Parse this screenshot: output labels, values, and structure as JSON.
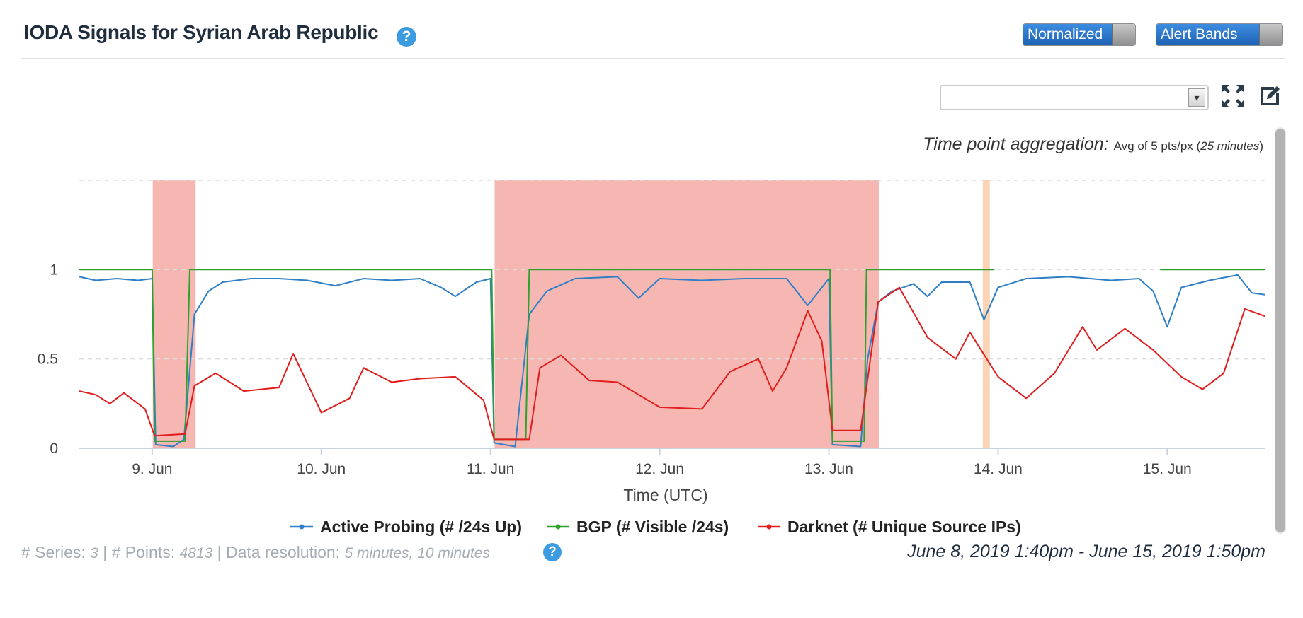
{
  "header": {
    "title": "IODA Signals for Syrian Arab Republic",
    "help_glyph": "?"
  },
  "toggles": {
    "normalized": "Normalized",
    "alert_bands": "Alert Bands"
  },
  "toolbar": {
    "select_value": "",
    "select_arrow_glyph": "▾"
  },
  "aggregation": {
    "label": "Time point aggregation:",
    "detail_prefix": "Avg of 5 pts/px (",
    "detail_italic": "25 minutes",
    "detail_suffix": ")"
  },
  "chart_data": {
    "type": "line",
    "xlabel": "Time (UTC)",
    "ylabel": "",
    "ylim": [
      0,
      1.5
    ],
    "x_range": [
      "2019-06-08 13:40",
      "2019-06-15 13:50"
    ],
    "yticks": [
      "0",
      "0.5",
      "1"
    ],
    "xticks": [
      "9. Jun",
      "10. Jun",
      "11. Jun",
      "12. Jun",
      "13. Jun",
      "14. Jun",
      "15. Jun"
    ],
    "grid": true,
    "legend_position": "bottom-center",
    "alert_bands": [
      {
        "start": "2019-06-09 00:05",
        "end": "2019-06-09 06:10",
        "level": "critical",
        "color": "#f4aaa6"
      },
      {
        "start": "2019-06-11 00:35",
        "end": "2019-06-13 07:05",
        "level": "critical",
        "color": "#f4aaa6"
      },
      {
        "start": "2019-06-13 21:50",
        "end": "2019-06-13 22:50",
        "level": "warning",
        "color": "#f9cda8"
      }
    ],
    "series": [
      {
        "name": "Active Probing (# /24s Up)",
        "color": "#2e7fc6",
        "points": [
          [
            "2019-06-08 13:40",
            0.96
          ],
          [
            "2019-06-08 16:00",
            0.94
          ],
          [
            "2019-06-08 19:00",
            0.95
          ],
          [
            "2019-06-08 22:00",
            0.94
          ],
          [
            "2019-06-09 00:00",
            0.95
          ],
          [
            "2019-06-09 00:30",
            0.02
          ],
          [
            "2019-06-09 03:00",
            0.01
          ],
          [
            "2019-06-09 04:30",
            0.05
          ],
          [
            "2019-06-09 06:00",
            0.75
          ],
          [
            "2019-06-09 08:00",
            0.88
          ],
          [
            "2019-06-09 10:00",
            0.93
          ],
          [
            "2019-06-09 14:00",
            0.95
          ],
          [
            "2019-06-09 18:00",
            0.95
          ],
          [
            "2019-06-09 22:00",
            0.94
          ],
          [
            "2019-06-10 02:00",
            0.91
          ],
          [
            "2019-06-10 06:00",
            0.95
          ],
          [
            "2019-06-10 10:00",
            0.94
          ],
          [
            "2019-06-10 14:00",
            0.95
          ],
          [
            "2019-06-10 17:00",
            0.9
          ],
          [
            "2019-06-10 19:00",
            0.85
          ],
          [
            "2019-06-10 22:00",
            0.93
          ],
          [
            "2019-06-11 00:00",
            0.95
          ],
          [
            "2019-06-11 00:30",
            0.03
          ],
          [
            "2019-06-11 03:30",
            0.01
          ],
          [
            "2019-06-11 05:30",
            0.75
          ],
          [
            "2019-06-11 08:00",
            0.88
          ],
          [
            "2019-06-11 12:00",
            0.95
          ],
          [
            "2019-06-11 18:00",
            0.96
          ],
          [
            "2019-06-11 21:00",
            0.84
          ],
          [
            "2019-06-12 00:00",
            0.95
          ],
          [
            "2019-06-12 06:00",
            0.94
          ],
          [
            "2019-06-12 12:00",
            0.95
          ],
          [
            "2019-06-12 18:00",
            0.95
          ],
          [
            "2019-06-12 21:00",
            0.8
          ],
          [
            "2019-06-13 00:00",
            0.95
          ],
          [
            "2019-06-13 00:30",
            0.02
          ],
          [
            "2019-06-13 04:30",
            0.01
          ],
          [
            "2019-06-13 05:30",
            0.5
          ],
          [
            "2019-06-13 07:00",
            0.82
          ],
          [
            "2019-06-13 09:00",
            0.88
          ],
          [
            "2019-06-13 12:00",
            0.92
          ],
          [
            "2019-06-13 14:00",
            0.85
          ],
          [
            "2019-06-13 16:00",
            0.93
          ],
          [
            "2019-06-13 20:00",
            0.93
          ],
          [
            "2019-06-13 22:00",
            0.72
          ],
          [
            "2019-06-14 00:00",
            0.9
          ],
          [
            "2019-06-14 04:00",
            0.95
          ],
          [
            "2019-06-14 10:00",
            0.96
          ],
          [
            "2019-06-14 16:00",
            0.94
          ],
          [
            "2019-06-14 20:00",
            0.95
          ],
          [
            "2019-06-14 22:00",
            0.88
          ],
          [
            "2019-06-15 00:00",
            0.68
          ],
          [
            "2019-06-15 02:00",
            0.9
          ],
          [
            "2019-06-15 06:00",
            0.94
          ],
          [
            "2019-06-15 10:00",
            0.97
          ],
          [
            "2019-06-15 12:00",
            0.87
          ],
          [
            "2019-06-15 13:50",
            0.86
          ]
        ]
      },
      {
        "name": "BGP (# Visible /24s)",
        "color": "#2ea02e",
        "points": [
          [
            "2019-06-08 13:40",
            1.0
          ],
          [
            "2019-06-09 00:00",
            1.0
          ],
          [
            "2019-06-09 00:20",
            0.04
          ],
          [
            "2019-06-09 04:40",
            0.04
          ],
          [
            "2019-06-09 05:20",
            1.0
          ],
          [
            "2019-06-11 00:10",
            1.0
          ],
          [
            "2019-06-11 00:30",
            0.05
          ],
          [
            "2019-06-11 05:00",
            0.05
          ],
          [
            "2019-06-11 05:30",
            1.0
          ],
          [
            "2019-06-13 00:10",
            1.0
          ],
          [
            "2019-06-13 00:30",
            0.04
          ],
          [
            "2019-06-13 05:00",
            0.04
          ],
          [
            "2019-06-13 05:20",
            1.0
          ],
          [
            "2019-06-13 23:30",
            1.0
          ],
          [
            "2019-06-14 23:00",
            1.0
          ],
          [
            "2019-06-15 13:50",
            1.0
          ]
        ],
        "gaps": [
          [
            "2019-06-13 23:30",
            "2019-06-14 23:00"
          ]
        ]
      },
      {
        "name": "Darknet (# Unique Source IPs)",
        "color": "#e11d1d",
        "points": [
          [
            "2019-06-08 13:40",
            0.32
          ],
          [
            "2019-06-08 16:00",
            0.3
          ],
          [
            "2019-06-08 18:00",
            0.25
          ],
          [
            "2019-06-08 20:00",
            0.31
          ],
          [
            "2019-06-08 23:00",
            0.22
          ],
          [
            "2019-06-09 00:20",
            0.07
          ],
          [
            "2019-06-09 04:40",
            0.08
          ],
          [
            "2019-06-09 06:00",
            0.35
          ],
          [
            "2019-06-09 09:00",
            0.42
          ],
          [
            "2019-06-09 13:00",
            0.32
          ],
          [
            "2019-06-09 18:00",
            0.34
          ],
          [
            "2019-06-09 20:00",
            0.53
          ],
          [
            "2019-06-10 00:00",
            0.2
          ],
          [
            "2019-06-10 04:00",
            0.28
          ],
          [
            "2019-06-10 06:00",
            0.45
          ],
          [
            "2019-06-10 10:00",
            0.37
          ],
          [
            "2019-06-10 14:00",
            0.39
          ],
          [
            "2019-06-10 19:00",
            0.4
          ],
          [
            "2019-06-10 23:00",
            0.27
          ],
          [
            "2019-06-11 00:30",
            0.05
          ],
          [
            "2019-06-11 05:30",
            0.05
          ],
          [
            "2019-06-11 07:00",
            0.45
          ],
          [
            "2019-06-11 10:00",
            0.52
          ],
          [
            "2019-06-11 14:00",
            0.38
          ],
          [
            "2019-06-11 18:00",
            0.37
          ],
          [
            "2019-06-12 00:00",
            0.23
          ],
          [
            "2019-06-12 06:00",
            0.22
          ],
          [
            "2019-06-12 10:00",
            0.43
          ],
          [
            "2019-06-12 14:00",
            0.5
          ],
          [
            "2019-06-12 16:00",
            0.32
          ],
          [
            "2019-06-12 18:00",
            0.45
          ],
          [
            "2019-06-12 21:00",
            0.77
          ],
          [
            "2019-06-12 23:00",
            0.6
          ],
          [
            "2019-06-13 00:30",
            0.1
          ],
          [
            "2019-06-13 04:30",
            0.1
          ],
          [
            "2019-06-13 07:00",
            0.82
          ],
          [
            "2019-06-13 10:00",
            0.9
          ],
          [
            "2019-06-13 14:00",
            0.62
          ],
          [
            "2019-06-13 18:00",
            0.5
          ],
          [
            "2019-06-13 20:00",
            0.65
          ],
          [
            "2019-06-14 00:00",
            0.4
          ],
          [
            "2019-06-14 04:00",
            0.28
          ],
          [
            "2019-06-14 08:00",
            0.42
          ],
          [
            "2019-06-14 12:00",
            0.68
          ],
          [
            "2019-06-14 14:00",
            0.55
          ],
          [
            "2019-06-14 18:00",
            0.67
          ],
          [
            "2019-06-14 22:00",
            0.55
          ],
          [
            "2019-06-15 02:00",
            0.4
          ],
          [
            "2019-06-15 05:00",
            0.33
          ],
          [
            "2019-06-15 08:00",
            0.42
          ],
          [
            "2019-06-15 11:00",
            0.78
          ],
          [
            "2019-06-15 13:50",
            0.74
          ]
        ]
      }
    ]
  },
  "footer": {
    "series_label": "# Series:",
    "series_count": "3",
    "points_label": "# Points:",
    "points_count": "4813",
    "resolution_label": "Data resolution:",
    "resolution_value": "5 minutes, 10 minutes",
    "date_range": "June 8, 2019 1:40pm - June 15, 2019 1:50pm"
  },
  "colors": {
    "accent": "#3d9be0",
    "title": "#1f2d3d",
    "critical_band": "#f4aaa6",
    "warning_band": "#f9cda8"
  }
}
